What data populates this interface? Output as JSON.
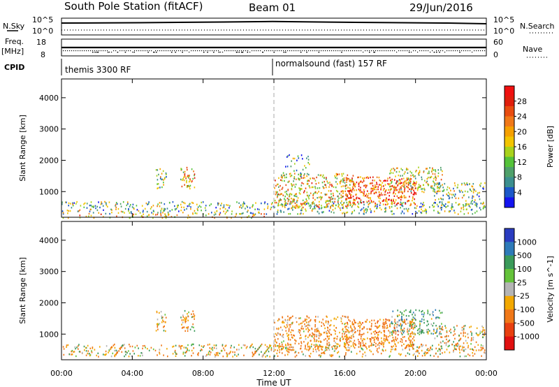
{
  "header": {
    "station": "South Pole Station (fitACF)",
    "beam": "Beam 01",
    "date": "29/Jun/2016"
  },
  "panels": {
    "nsky": {
      "label": "N.Sky",
      "tick_top": "10^5",
      "tick_bottom": "10^0",
      "right_label": "N.Search",
      "right_tick_top": "10^5",
      "right_tick_bottom": "10^0"
    },
    "freq": {
      "label_line1": "Freq.",
      "label_line2": "[MHz]",
      "tick_top": "18",
      "tick_bottom": "8",
      "right_label": "Nave",
      "right_tick_top": "60",
      "right_tick_bottom": "0"
    },
    "cpid": {
      "label": "CPID",
      "segments": [
        "themis 3300 RF",
        "normalsound (fast) 157 RF"
      ]
    }
  },
  "chart_data": [
    {
      "type": "heatmap",
      "name": "power",
      "ylabel": "Slant Range [km]",
      "xlabel": "Time UT",
      "x_ticks": [
        "00:00",
        "04:00",
        "08:00",
        "12:00",
        "16:00",
        "20:00",
        "00:00"
      ],
      "x_tick_hours": [
        0,
        4,
        8,
        12,
        16,
        20,
        24
      ],
      "y_ticks": [
        1000,
        2000,
        3000,
        4000
      ],
      "ylim": [
        180,
        4600
      ],
      "xlim_hours": [
        0,
        24
      ],
      "grid": false,
      "colorbar": {
        "label": "Power [dB]",
        "ticks": [
          "4",
          "8",
          "12",
          "16",
          "20",
          "24",
          "28"
        ],
        "min": 0,
        "max": 32,
        "colors": [
          "#1414f0",
          "#1c58c8",
          "#3c8f8f",
          "#4fa06a",
          "#55c23a",
          "#a8d21c",
          "#f2c400",
          "#f5a000",
          "#f07818",
          "#e84c10",
          "#e01e0c",
          "#f01010"
        ]
      },
      "echo_regions": [
        {
          "t0": 0.0,
          "t1": 23.9,
          "r0": 300,
          "r1": 700,
          "density": 0.45,
          "value": 12
        },
        {
          "t0": 0.0,
          "t1": 11.5,
          "r0": 180,
          "r1": 320,
          "density": 0.35,
          "value": 20
        },
        {
          "t0": 5.3,
          "t1": 5.9,
          "r0": 1100,
          "r1": 1750,
          "density": 0.55,
          "value": 14
        },
        {
          "t0": 6.7,
          "t1": 7.5,
          "r0": 1100,
          "r1": 1800,
          "density": 0.65,
          "value": 20
        },
        {
          "t0": 12.0,
          "t1": 16.5,
          "r0": 500,
          "r1": 1600,
          "density": 0.6,
          "value": 18
        },
        {
          "t0": 12.5,
          "t1": 14.0,
          "r0": 1500,
          "r1": 2200,
          "density": 0.25,
          "value": 10
        },
        {
          "t0": 16.0,
          "t1": 20.0,
          "r0": 600,
          "r1": 1500,
          "density": 0.75,
          "value": 26
        },
        {
          "t0": 18.5,
          "t1": 21.5,
          "r0": 1000,
          "r1": 1800,
          "density": 0.55,
          "value": 16
        },
        {
          "t0": 21.0,
          "t1": 23.9,
          "r0": 500,
          "r1": 1300,
          "density": 0.45,
          "value": 12
        }
      ]
    },
    {
      "type": "heatmap",
      "name": "velocity",
      "ylabel": "Slant Range [km]",
      "xlabel": "Time UT",
      "x_ticks": [
        "00:00",
        "04:00",
        "08:00",
        "12:00",
        "16:00",
        "20:00",
        "00:00"
      ],
      "x_tick_hours": [
        0,
        4,
        8,
        12,
        16,
        20,
        24
      ],
      "y_ticks": [
        1000,
        2000,
        3000,
        4000
      ],
      "ylim": [
        180,
        4600
      ],
      "xlim_hours": [
        0,
        24
      ],
      "grid": false,
      "colorbar": {
        "label": "Velocity [m s^-1]",
        "ticks": [
          "1000",
          "500",
          "100",
          "25",
          "-25",
          "-100",
          "-500",
          "-1000"
        ],
        "colors": [
          "#2a3cc0",
          "#2d7ab8",
          "#3a9a5a",
          "#64c23a",
          "#b4b4b4",
          "#f2a800",
          "#f07818",
          "#e84010",
          "#e01010"
        ]
      },
      "echo_regions": [
        {
          "t0": 0.0,
          "t1": 23.9,
          "r0": 300,
          "r1": 700,
          "density": 0.45,
          "value": -100
        },
        {
          "t0": 5.3,
          "t1": 5.9,
          "r0": 1100,
          "r1": 1750,
          "density": 0.55,
          "value": -100
        },
        {
          "t0": 6.7,
          "t1": 7.5,
          "r0": 1100,
          "r1": 1800,
          "density": 0.65,
          "value": -100
        },
        {
          "t0": 12.0,
          "t1": 16.5,
          "r0": 500,
          "r1": 1600,
          "density": 0.6,
          "value": -200
        },
        {
          "t0": 16.0,
          "t1": 20.0,
          "r0": 600,
          "r1": 1500,
          "density": 0.7,
          "value": -300
        },
        {
          "t0": 18.5,
          "t1": 21.5,
          "r0": 1000,
          "r1": 1800,
          "density": 0.55,
          "value": 150
        },
        {
          "t0": 21.0,
          "t1": 23.9,
          "r0": 500,
          "r1": 1300,
          "density": 0.45,
          "value": -100
        }
      ]
    }
  ]
}
